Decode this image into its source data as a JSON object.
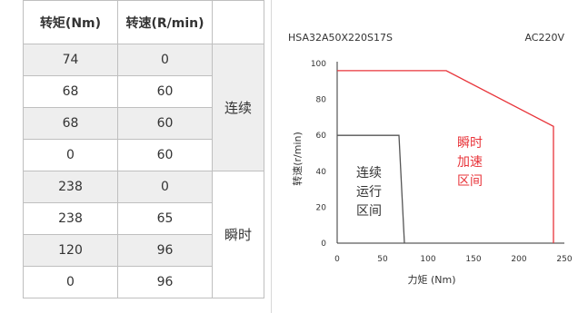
{
  "table": {
    "headers": [
      "转矩(Nm)",
      "转速(R/min)",
      ""
    ],
    "groups": [
      {
        "label": "连续",
        "rows": [
          [
            "74",
            "0"
          ],
          [
            "68",
            "60"
          ],
          [
            "68",
            "60"
          ],
          [
            "0",
            "60"
          ]
        ]
      },
      {
        "label": "瞬时",
        "rows": [
          [
            "238",
            "0"
          ],
          [
            "238",
            "65"
          ],
          [
            "120",
            "96"
          ],
          [
            "0",
            "96"
          ]
        ]
      }
    ]
  },
  "chart_data": {
    "type": "line",
    "model": "HSA32A50X220S17S",
    "voltage": "AC220V",
    "xlabel": "力矩 (Nm)",
    "ylabel": "转速(r/min)",
    "xlim": [
      0,
      250
    ],
    "ylim": [
      0,
      100
    ],
    "xticks": [
      0,
      50,
      100,
      150,
      200,
      250
    ],
    "yticks": [
      0,
      20,
      40,
      60,
      80,
      100
    ],
    "series": [
      {
        "region": "continuous",
        "color": "#555555",
        "x": [
          0,
          68,
          74
        ],
        "y": [
          60,
          60,
          0
        ]
      },
      {
        "region": "instant",
        "color": "#e8343a",
        "x": [
          0,
          120,
          238,
          238
        ],
        "y": [
          96,
          96,
          65,
          0
        ]
      }
    ],
    "annotations": [
      {
        "lines": [
          "连续",
          "运行",
          "区间"
        ],
        "color": "#333333"
      },
      {
        "lines": [
          "瞬时",
          "加速",
          "区间"
        ],
        "color": "#e8343a"
      }
    ]
  }
}
